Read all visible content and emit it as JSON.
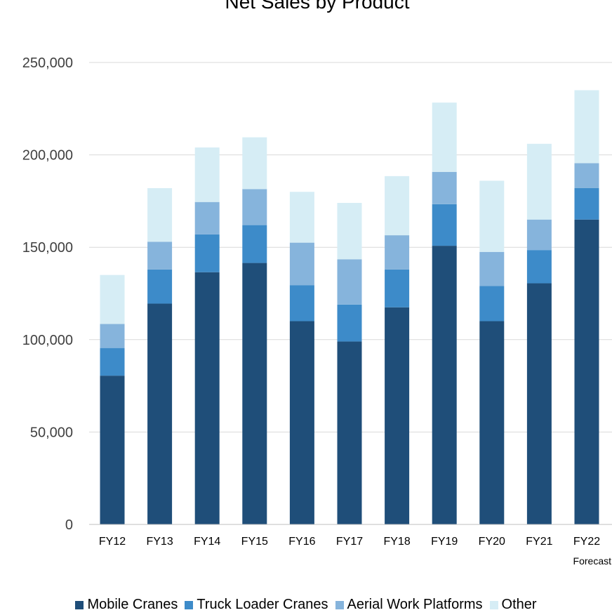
{
  "chart_data": {
    "type": "bar",
    "stacked": true,
    "title": "Net Sales by Product",
    "categories": [
      "FY12",
      "FY13",
      "FY14",
      "FY15",
      "FY16",
      "FY17",
      "FY18",
      "FY19",
      "FY20",
      "FY21",
      "FY22"
    ],
    "category_notes": [
      "",
      "",
      "",
      "",
      "",
      "",
      "",
      "",
      "",
      "",
      "Forecast"
    ],
    "series": [
      {
        "name": "Mobile Cranes",
        "color": "#1f4e79",
        "values": [
          80500,
          119500,
          136500,
          141500,
          110000,
          99000,
          117500,
          150800,
          110000,
          130500,
          165000
        ]
      },
      {
        "name": "Truck Loader Cranes",
        "color": "#3d8bc9",
        "values": [
          15000,
          18500,
          20500,
          20500,
          19500,
          20000,
          20500,
          22500,
          19000,
          18000,
          17000
        ]
      },
      {
        "name": "Aerial Work Platforms",
        "color": "#86b4dc",
        "values": [
          13000,
          15000,
          17500,
          19500,
          23000,
          24500,
          18500,
          17500,
          18500,
          16500,
          13500
        ]
      },
      {
        "name": "Other",
        "color": "#d6edf5",
        "values": [
          26500,
          29000,
          29500,
          28000,
          27500,
          30500,
          32000,
          37500,
          38500,
          41000,
          39500
        ]
      }
    ],
    "yticks": [
      "0",
      "50,000",
      "100,000",
      "150,000",
      "200,000",
      "250,000"
    ],
    "ylim": [
      0,
      250000
    ],
    "grid": true,
    "legend": "bottom"
  }
}
